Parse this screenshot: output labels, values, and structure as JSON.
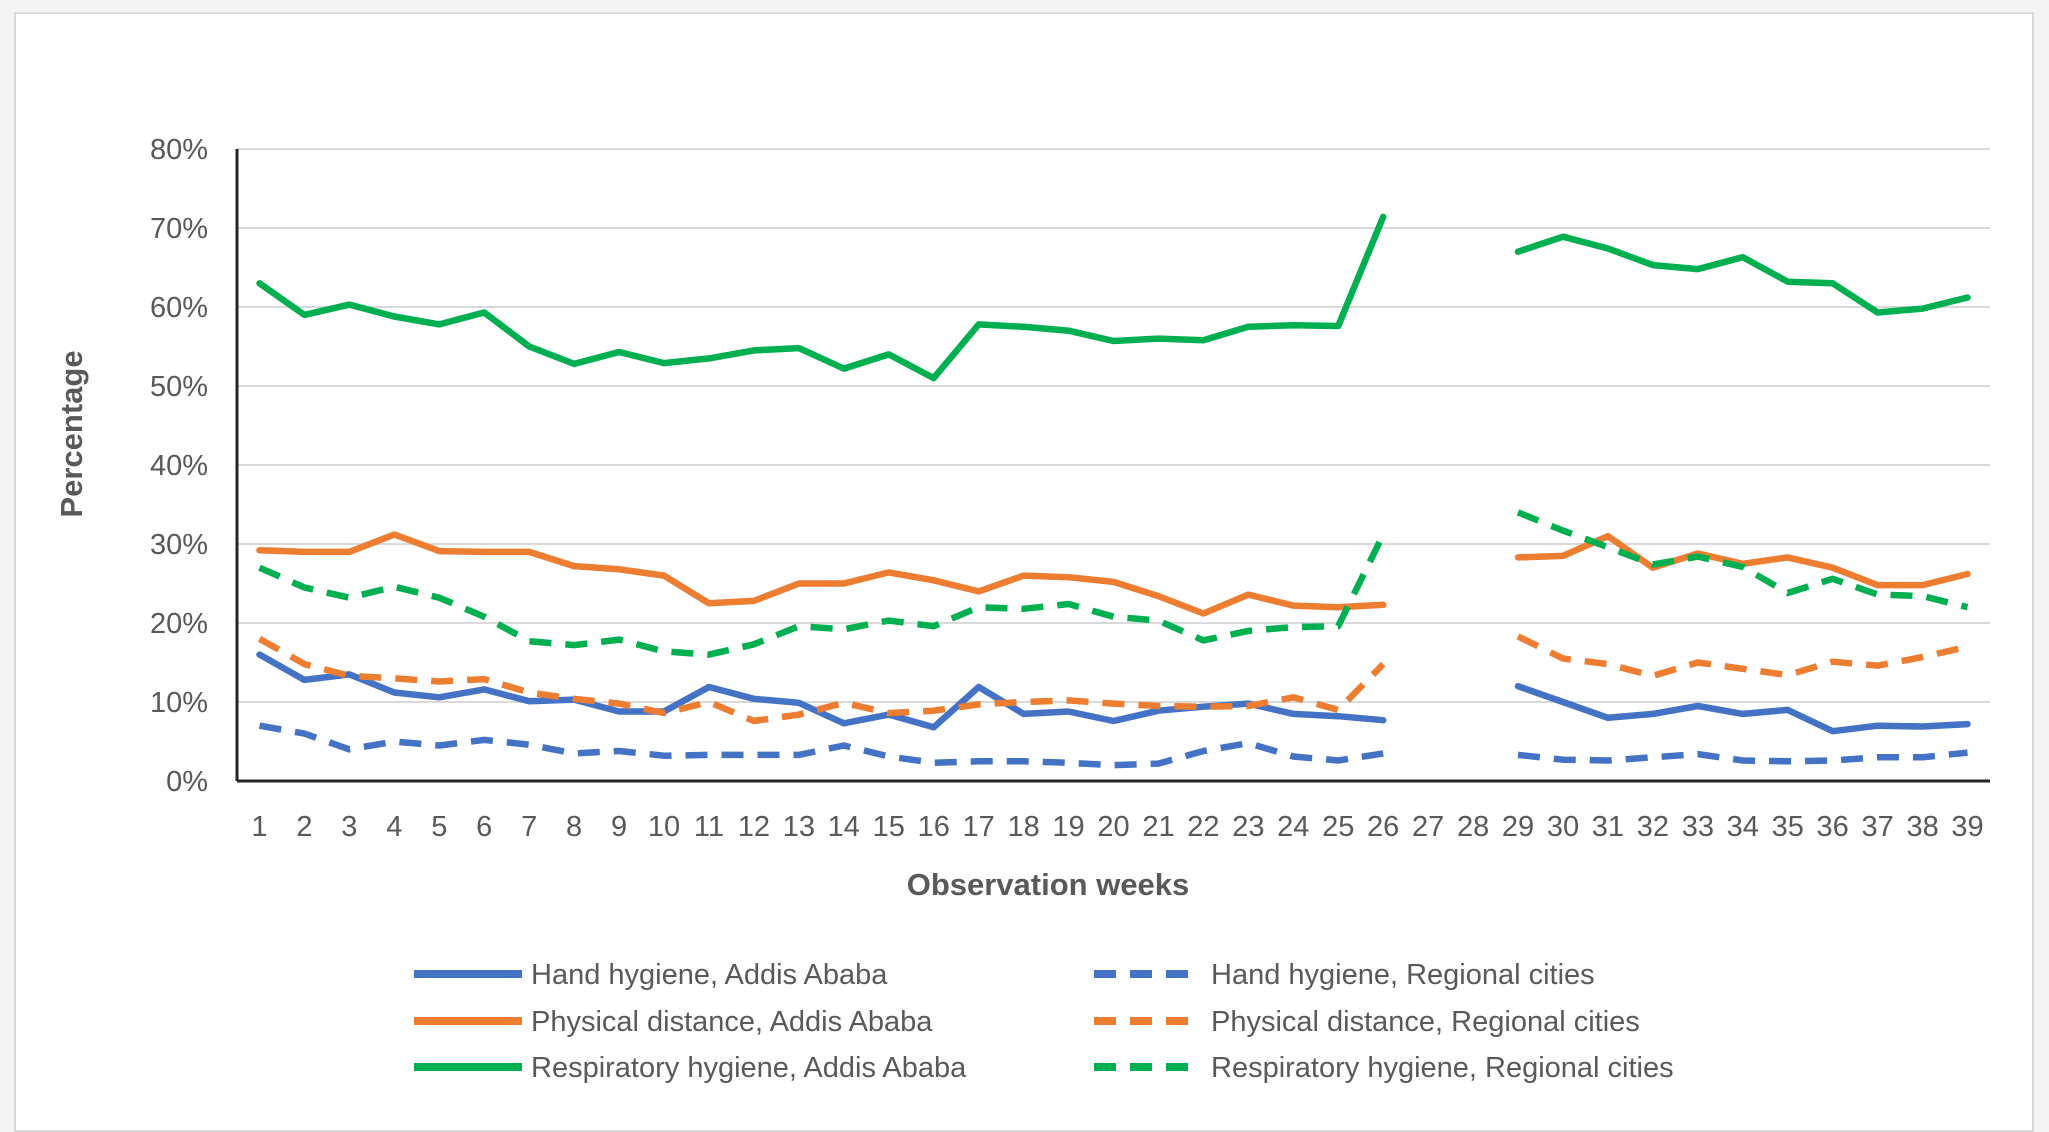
{
  "chart_data": {
    "type": "line",
    "title": "",
    "xlabel": "Observation weeks",
    "ylabel": "Percentage",
    "ylim": [
      0,
      80
    ],
    "y_ticks": [
      "0%",
      "10%",
      "20%",
      "30%",
      "40%",
      "50%",
      "60%",
      "70%",
      "80%"
    ],
    "grid": "horizontal",
    "legend_position": "bottom",
    "categories": [
      "1",
      "2",
      "3",
      "4",
      "5",
      "6",
      "7",
      "8",
      "9",
      "10",
      "11",
      "12",
      "13",
      "14",
      "15",
      "16",
      "17",
      "18",
      "19",
      "20",
      "21",
      "22",
      "23",
      "24",
      "25",
      "26",
      "27",
      "28",
      "29",
      "30",
      "31",
      "32",
      "33",
      "34",
      "35",
      "36",
      "37",
      "38",
      "39"
    ],
    "series": [
      {
        "name": "Hand hygiene, Addis Ababa",
        "color": "#4472c4",
        "dash": "solid",
        "values": [
          16,
          12.8,
          13.5,
          11.2,
          10.6,
          11.6,
          10.1,
          10.3,
          8.8,
          8.8,
          11.9,
          10.4,
          9.9,
          7.3,
          8.4,
          6.8,
          11.9,
          8.5,
          8.8,
          7.6,
          8.9,
          9.4,
          9.8,
          8.5,
          8.2,
          7.7,
          null,
          null,
          12,
          10,
          8,
          8.5,
          9.5,
          8.5,
          9,
          6.3,
          7,
          6.9,
          7.2
        ]
      },
      {
        "name": "Hand hygiene, Regional cities",
        "color": "#4472c4",
        "dash": "dashed",
        "values": [
          7,
          6,
          4,
          5,
          4.5,
          5.2,
          4.6,
          3.5,
          3.8,
          3.2,
          3.3,
          3.3,
          3.3,
          4.5,
          3.1,
          2.3,
          2.5,
          2.5,
          2.3,
          2,
          2.2,
          3.8,
          4.8,
          3.1,
          2.6,
          3.5,
          null,
          null,
          3.3,
          2.7,
          2.6,
          3,
          3.4,
          2.6,
          2.5,
          2.6,
          3,
          3,
          3.6
        ]
      },
      {
        "name": "Physical distance, Addis Ababa",
        "color": "#ed7d31",
        "dash": "solid",
        "values": [
          29.2,
          29,
          29,
          31.2,
          29.1,
          29,
          29,
          27.2,
          26.8,
          26,
          22.5,
          22.8,
          25,
          25,
          26.4,
          25.4,
          24,
          26,
          25.8,
          25.2,
          23.4,
          21.2,
          23.6,
          22.2,
          22,
          22.3,
          null,
          null,
          28.3,
          28.5,
          31,
          27,
          28.8,
          27.5,
          28.3,
          27,
          24.8,
          24.8,
          26.2
        ]
      },
      {
        "name": "Physical distance, Regional cities",
        "color": "#ed7d31",
        "dash": "dashed",
        "values": [
          18,
          14.8,
          13.3,
          13,
          12.6,
          12.9,
          11.2,
          10.4,
          9.8,
          8.6,
          10,
          7.6,
          8.4,
          9.9,
          8.6,
          8.9,
          9.7,
          10,
          10.2,
          9.8,
          9.5,
          9.4,
          9.5,
          10.6,
          9,
          14.8,
          null,
          null,
          18.3,
          15.5,
          14.8,
          13.3,
          15,
          14.2,
          13.4,
          15.1,
          14.6,
          15.7,
          17
        ]
      },
      {
        "name": "Respiratory hygiene, Addis Ababa",
        "color": "#00b050",
        "dash": "solid",
        "values": [
          63,
          59,
          60.3,
          58.8,
          57.8,
          59.3,
          55,
          52.8,
          54.3,
          52.9,
          53.5,
          54.5,
          54.8,
          52.2,
          54,
          51,
          57.8,
          57.5,
          57,
          55.7,
          56,
          55.8,
          57.5,
          57.7,
          57.6,
          71.4,
          null,
          null,
          67,
          68.9,
          67.4,
          65.3,
          64.8,
          66.3,
          63.2,
          63,
          59.3,
          59.8,
          61.2
        ]
      },
      {
        "name": "Respiratory hygiene, Regional cities",
        "color": "#00b050",
        "dash": "dashed",
        "values": [
          27,
          24.5,
          23.2,
          24.6,
          23.2,
          20.8,
          17.7,
          17.2,
          17.9,
          16.4,
          16,
          17.3,
          19.6,
          19.2,
          20.3,
          19.6,
          22,
          21.8,
          22.4,
          20.8,
          20.3,
          17.8,
          19,
          19.5,
          19.6,
          31.2,
          null,
          null,
          34,
          31.7,
          29.6,
          27.4,
          28.4,
          27.1,
          23.8,
          25.6,
          23.6,
          23.4,
          22
        ]
      }
    ]
  }
}
